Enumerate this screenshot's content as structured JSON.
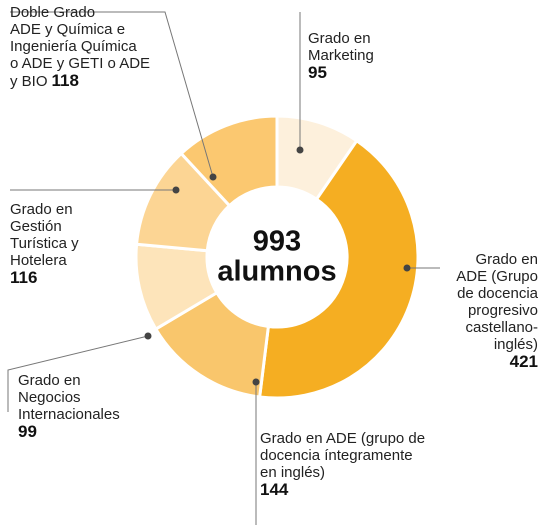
{
  "chart_data": {
    "type": "donut",
    "total": 993,
    "total_label": "alumnos",
    "slices": [
      {
        "name": "Grado en\nMarketing",
        "value": 95,
        "color": "#fdf0dc"
      },
      {
        "name": "Grado en\nADE (Grupo\nde docencia\nprogresivo\ncastellano-\ninglés)",
        "value": 421,
        "color": "#f5ae22"
      },
      {
        "name": "Grado en ADE (grupo de\ndocencia íntegramente\nen inglés)",
        "value": 144,
        "color": "#f9c66c"
      },
      {
        "name": "Grado en\nNegocios\nInternacionales",
        "value": 99,
        "color": "#fde4ba"
      },
      {
        "name": "Grado en\nGestión\nTurística y\nHotelera",
        "value": 116,
        "color": "#fcd594"
      },
      {
        "name": "Doble Grado\nADE y Química e\nIngeniería Química\no ADE y GETI o ADE\ny BIO",
        "value": 118,
        "color": "#fbc870"
      }
    ]
  }
}
